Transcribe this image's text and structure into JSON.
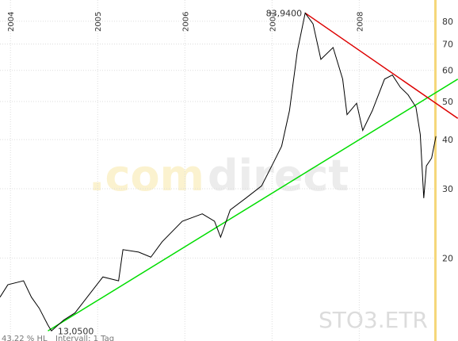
{
  "chart_data": {
    "type": "line",
    "log_scale": true,
    "grid": true,
    "xlim": [
      2003.88,
      2008.86
    ],
    "xticks": [
      2004,
      2005,
      2006,
      2007,
      2008
    ],
    "ylim": [
      12.3,
      90.6
    ],
    "yticks": [
      20,
      30,
      40,
      50,
      60,
      70,
      80
    ],
    "series": [
      {
        "name": "STO3.ETR",
        "color": "#000000",
        "x": [
          2003.88,
          2003.97,
          2004.15,
          2004.24,
          2004.33,
          2004.43,
          2004.47,
          2004.61,
          2004.74,
          2004.88,
          2005.06,
          2005.24,
          2005.29,
          2005.47,
          2005.61,
          2005.74,
          2005.97,
          2006.2,
          2006.34,
          2006.41,
          2006.52,
          2006.7,
          2006.88,
          2007.02,
          2007.11,
          2007.2,
          2007.29,
          2007.38,
          2007.47,
          2007.56,
          2007.7,
          2007.81,
          2007.86,
          2007.97,
          2008.04,
          2008.15,
          2008.29,
          2008.38,
          2008.47,
          2008.56,
          2008.65,
          2008.7,
          2008.74,
          2008.77,
          2008.83,
          2008.88
        ],
        "values": [
          15.9,
          17.1,
          17.5,
          15.9,
          14.9,
          13.5,
          13.05,
          13.9,
          14.5,
          15.9,
          17.9,
          17.5,
          21.0,
          20.7,
          20.1,
          22.0,
          24.8,
          25.9,
          24.8,
          22.6,
          26.5,
          28.4,
          30.5,
          35.1,
          38.5,
          47.4,
          67.1,
          83.94,
          78.8,
          64.0,
          68.6,
          57.0,
          46.3,
          49.5,
          42.2,
          47.4,
          57.0,
          58.4,
          54.4,
          52.0,
          48.4,
          41.2,
          28.4,
          34.3,
          35.9,
          40.8
        ]
      }
    ],
    "trendlines": [
      {
        "color": "#00dd00",
        "x": [
          2004.43,
          2009.13
        ],
        "values": [
          13.05,
          57.0
        ]
      },
      {
        "color": "#dd0000",
        "x": [
          2007.38,
          2009.13
        ],
        "values": [
          83.94,
          45.3
        ]
      }
    ],
    "annotations": [
      "83,9400",
      "13,0500"
    ],
    "watermark": [
      ".com",
      "direct"
    ],
    "symbol": "STO3.ETR",
    "footer": [
      "43,22 % HL",
      "Intervall: 1 Tag"
    ],
    "axis_color": "#f5d77a"
  }
}
